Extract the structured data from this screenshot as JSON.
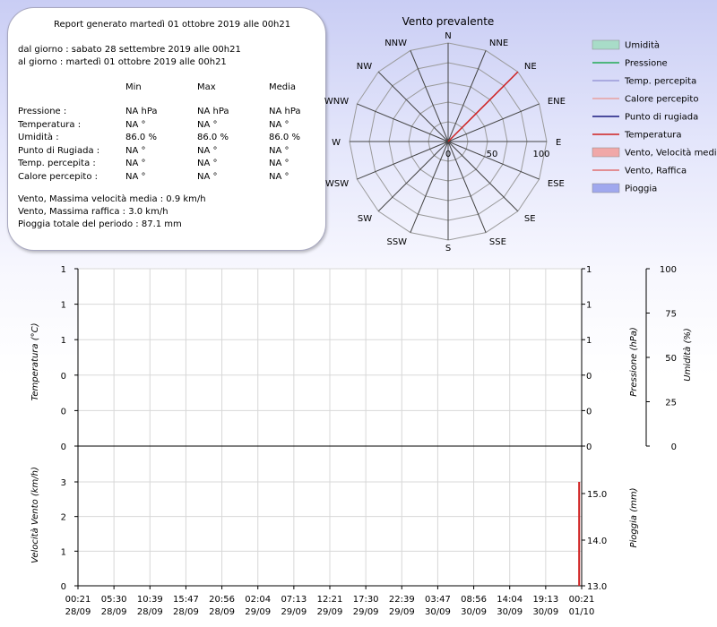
{
  "summary": {
    "title": "Report generato martedì 01 ottobre 2019 alle 00h21",
    "from": "dal giorno : sabato 28 settembre 2019 alle 00h21",
    "to": "al giorno : martedì 01 ottobre 2019 alle 00h21",
    "headers": [
      "Min",
      "Max",
      "Media"
    ],
    "rows": [
      {
        "label": "Pressione :",
        "min": "NA hPa",
        "max": "NA hPa",
        "avg": "NA hPa"
      },
      {
        "label": "Temperatura :",
        "min": "NA °",
        "max": "NA °",
        "avg": "NA °"
      },
      {
        "label": "Umidità :",
        "min": "86.0 %",
        "max": "86.0 %",
        "avg": "86.0 %"
      },
      {
        "label": "Punto di Rugiada :",
        "min": "NA °",
        "max": "NA °",
        "avg": "NA °"
      },
      {
        "label": "Temp. percepita :",
        "min": "NA °",
        "max": "NA °",
        "avg": "NA °"
      },
      {
        "label": "Calore percepito :",
        "min": "NA °",
        "max": "NA °",
        "avg": "NA °"
      }
    ],
    "wind_avg": "Vento, Massima velocità media : 0.9 km/h",
    "wind_gust": "Vento, Massima raffica : 3.0 km/h",
    "rain": "Pioggia totale del periodo : 87.1 mm"
  },
  "colors": {
    "humidity": "#a8dcc8",
    "pressure": "#22aa55",
    "feels": "#9a9ad8",
    "heat": "#e8a0a0",
    "dew": "#1a1a80",
    "temp": "#d02020",
    "wind_avg": "#f0a8a8",
    "gust": "#e07070",
    "rain": "#a0a8ee",
    "rose_line": "#d02020",
    "bar": "#d02020"
  },
  "chart_data": [
    {
      "type": "polar",
      "title": "Vento prevalente",
      "directions": [
        "N",
        "NNE",
        "NE",
        "ENE",
        "E",
        "ESE",
        "SE",
        "SSE",
        "S",
        "SSW",
        "SW",
        "WSW",
        "W",
        "WNW",
        "NW",
        "NNW"
      ],
      "values": [
        0,
        0,
        100,
        0,
        0,
        0,
        0,
        0,
        0,
        0,
        0,
        0,
        0,
        0,
        0,
        0
      ],
      "radial_ticks": [
        "0",
        "50",
        "100"
      ],
      "rmax": 100
    },
    {
      "type": "line",
      "left_label": "Temperatura (°C)",
      "left_ticks": [
        "1",
        "1",
        "1",
        "0",
        "0",
        "0"
      ],
      "right1_label": "Pressione (hPa)",
      "right1_ticks": [
        "1",
        "1",
        "1",
        "0",
        "0",
        "0"
      ],
      "right2_label": "Umidità (%)",
      "right2_ticks": [
        "100",
        "75",
        "50",
        "25",
        "0"
      ],
      "grid": true,
      "legend": [
        {
          "label": "Umidità",
          "style": "rect",
          "color": "humidity"
        },
        {
          "label": "Pressione",
          "style": "line",
          "color": "pressure"
        },
        {
          "label": "Temp. percepita",
          "style": "line",
          "color": "feels"
        },
        {
          "label": "Calore percepito",
          "style": "line",
          "color": "heat"
        },
        {
          "label": "Punto di rugiada",
          "style": "line",
          "color": "dew"
        },
        {
          "label": "Temperatura",
          "style": "line",
          "color": "temp"
        },
        {
          "label": "Vento, Velocità media",
          "style": "rect",
          "color": "wind_avg"
        },
        {
          "label": "Vento, Raffica",
          "style": "line",
          "color": "gust"
        },
        {
          "label": "Pioggia",
          "style": "rect",
          "color": "rain"
        }
      ]
    },
    {
      "type": "bar",
      "left_label": "Velocità Vento (km/h)",
      "left_ticks": [
        "3",
        "2",
        "1",
        "0"
      ],
      "ylim": [
        0,
        3.0
      ],
      "right_label": "Pioggia (mm)",
      "right_ticks": [
        "15.0",
        "14.0",
        "13.0"
      ],
      "x_labels": [
        {
          "time": "00:21",
          "date": "28/09"
        },
        {
          "time": "05:30",
          "date": "28/09"
        },
        {
          "time": "10:39",
          "date": "28/09"
        },
        {
          "time": "15:47",
          "date": "28/09"
        },
        {
          "time": "20:56",
          "date": "28/09"
        },
        {
          "time": "02:04",
          "date": "29/09"
        },
        {
          "time": "07:13",
          "date": "29/09"
        },
        {
          "time": "12:21",
          "date": "29/09"
        },
        {
          "time": "17:30",
          "date": "29/09"
        },
        {
          "time": "22:39",
          "date": "29/09"
        },
        {
          "time": "03:47",
          "date": "30/09"
        },
        {
          "time": "08:56",
          "date": "30/09"
        },
        {
          "time": "14:04",
          "date": "30/09"
        },
        {
          "time": "19:13",
          "date": "30/09"
        },
        {
          "time": "00:21",
          "date": "01/10"
        }
      ],
      "bars": [
        {
          "x_index": 13.93,
          "value": 3.0
        }
      ]
    }
  ]
}
